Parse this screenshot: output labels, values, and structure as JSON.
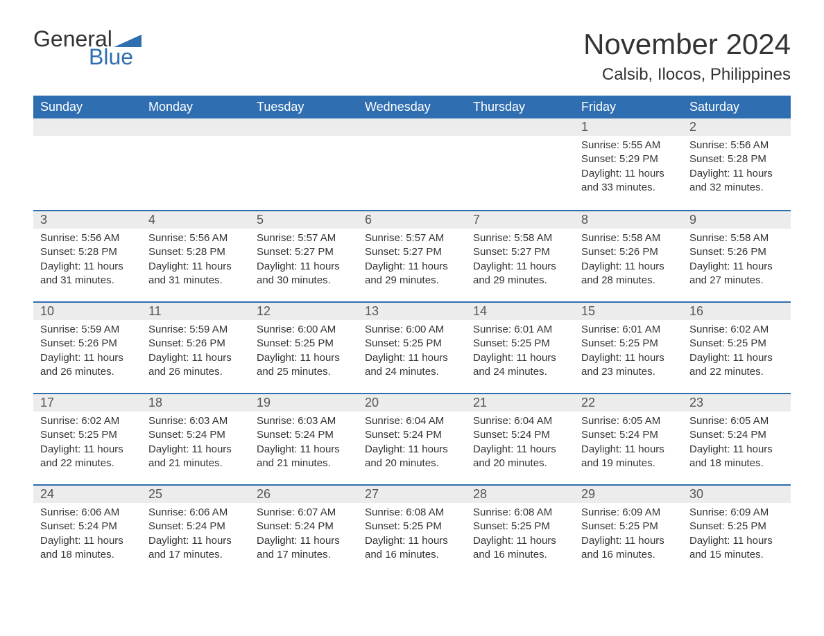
{
  "logo": {
    "word1": "General",
    "word2": "Blue"
  },
  "header": {
    "month_title": "November 2024",
    "location": "Calsib, Ilocos, Philippines"
  },
  "styling": {
    "header_bg": "#2f6eb0",
    "header_text": "#ffffff",
    "daynum_bg": "#ececec",
    "daynum_border": "#2f6eb0",
    "body_text": "#333333",
    "page_bg": "#ffffff",
    "font_family": "Arial",
    "title_fontsize_pt": 32,
    "location_fontsize_pt": 18,
    "dayheader_fontsize_pt": 14,
    "body_fontsize_pt": 11
  },
  "calendar": {
    "type": "table",
    "columns": [
      "Sunday",
      "Monday",
      "Tuesday",
      "Wednesday",
      "Thursday",
      "Friday",
      "Saturday"
    ],
    "weeks": [
      [
        null,
        null,
        null,
        null,
        null,
        {
          "n": "1",
          "sunrise": "5:55 AM",
          "sunset": "5:29 PM",
          "daylight": "11 hours and 33 minutes."
        },
        {
          "n": "2",
          "sunrise": "5:56 AM",
          "sunset": "5:28 PM",
          "daylight": "11 hours and 32 minutes."
        }
      ],
      [
        {
          "n": "3",
          "sunrise": "5:56 AM",
          "sunset": "5:28 PM",
          "daylight": "11 hours and 31 minutes."
        },
        {
          "n": "4",
          "sunrise": "5:56 AM",
          "sunset": "5:28 PM",
          "daylight": "11 hours and 31 minutes."
        },
        {
          "n": "5",
          "sunrise": "5:57 AM",
          "sunset": "5:27 PM",
          "daylight": "11 hours and 30 minutes."
        },
        {
          "n": "6",
          "sunrise": "5:57 AM",
          "sunset": "5:27 PM",
          "daylight": "11 hours and 29 minutes."
        },
        {
          "n": "7",
          "sunrise": "5:58 AM",
          "sunset": "5:27 PM",
          "daylight": "11 hours and 29 minutes."
        },
        {
          "n": "8",
          "sunrise": "5:58 AM",
          "sunset": "5:26 PM",
          "daylight": "11 hours and 28 minutes."
        },
        {
          "n": "9",
          "sunrise": "5:58 AM",
          "sunset": "5:26 PM",
          "daylight": "11 hours and 27 minutes."
        }
      ],
      [
        {
          "n": "10",
          "sunrise": "5:59 AM",
          "sunset": "5:26 PM",
          "daylight": "11 hours and 26 minutes."
        },
        {
          "n": "11",
          "sunrise": "5:59 AM",
          "sunset": "5:26 PM",
          "daylight": "11 hours and 26 minutes."
        },
        {
          "n": "12",
          "sunrise": "6:00 AM",
          "sunset": "5:25 PM",
          "daylight": "11 hours and 25 minutes."
        },
        {
          "n": "13",
          "sunrise": "6:00 AM",
          "sunset": "5:25 PM",
          "daylight": "11 hours and 24 minutes."
        },
        {
          "n": "14",
          "sunrise": "6:01 AM",
          "sunset": "5:25 PM",
          "daylight": "11 hours and 24 minutes."
        },
        {
          "n": "15",
          "sunrise": "6:01 AM",
          "sunset": "5:25 PM",
          "daylight": "11 hours and 23 minutes."
        },
        {
          "n": "16",
          "sunrise": "6:02 AM",
          "sunset": "5:25 PM",
          "daylight": "11 hours and 22 minutes."
        }
      ],
      [
        {
          "n": "17",
          "sunrise": "6:02 AM",
          "sunset": "5:25 PM",
          "daylight": "11 hours and 22 minutes."
        },
        {
          "n": "18",
          "sunrise": "6:03 AM",
          "sunset": "5:24 PM",
          "daylight": "11 hours and 21 minutes."
        },
        {
          "n": "19",
          "sunrise": "6:03 AM",
          "sunset": "5:24 PM",
          "daylight": "11 hours and 21 minutes."
        },
        {
          "n": "20",
          "sunrise": "6:04 AM",
          "sunset": "5:24 PM",
          "daylight": "11 hours and 20 minutes."
        },
        {
          "n": "21",
          "sunrise": "6:04 AM",
          "sunset": "5:24 PM",
          "daylight": "11 hours and 20 minutes."
        },
        {
          "n": "22",
          "sunrise": "6:05 AM",
          "sunset": "5:24 PM",
          "daylight": "11 hours and 19 minutes."
        },
        {
          "n": "23",
          "sunrise": "6:05 AM",
          "sunset": "5:24 PM",
          "daylight": "11 hours and 18 minutes."
        }
      ],
      [
        {
          "n": "24",
          "sunrise": "6:06 AM",
          "sunset": "5:24 PM",
          "daylight": "11 hours and 18 minutes."
        },
        {
          "n": "25",
          "sunrise": "6:06 AM",
          "sunset": "5:24 PM",
          "daylight": "11 hours and 17 minutes."
        },
        {
          "n": "26",
          "sunrise": "6:07 AM",
          "sunset": "5:24 PM",
          "daylight": "11 hours and 17 minutes."
        },
        {
          "n": "27",
          "sunrise": "6:08 AM",
          "sunset": "5:25 PM",
          "daylight": "11 hours and 16 minutes."
        },
        {
          "n": "28",
          "sunrise": "6:08 AM",
          "sunset": "5:25 PM",
          "daylight": "11 hours and 16 minutes."
        },
        {
          "n": "29",
          "sunrise": "6:09 AM",
          "sunset": "5:25 PM",
          "daylight": "11 hours and 16 minutes."
        },
        {
          "n": "30",
          "sunrise": "6:09 AM",
          "sunset": "5:25 PM",
          "daylight": "11 hours and 15 minutes."
        }
      ]
    ],
    "labels": {
      "sunrise_prefix": "Sunrise: ",
      "sunset_prefix": "Sunset: ",
      "daylight_prefix": "Daylight: "
    }
  }
}
